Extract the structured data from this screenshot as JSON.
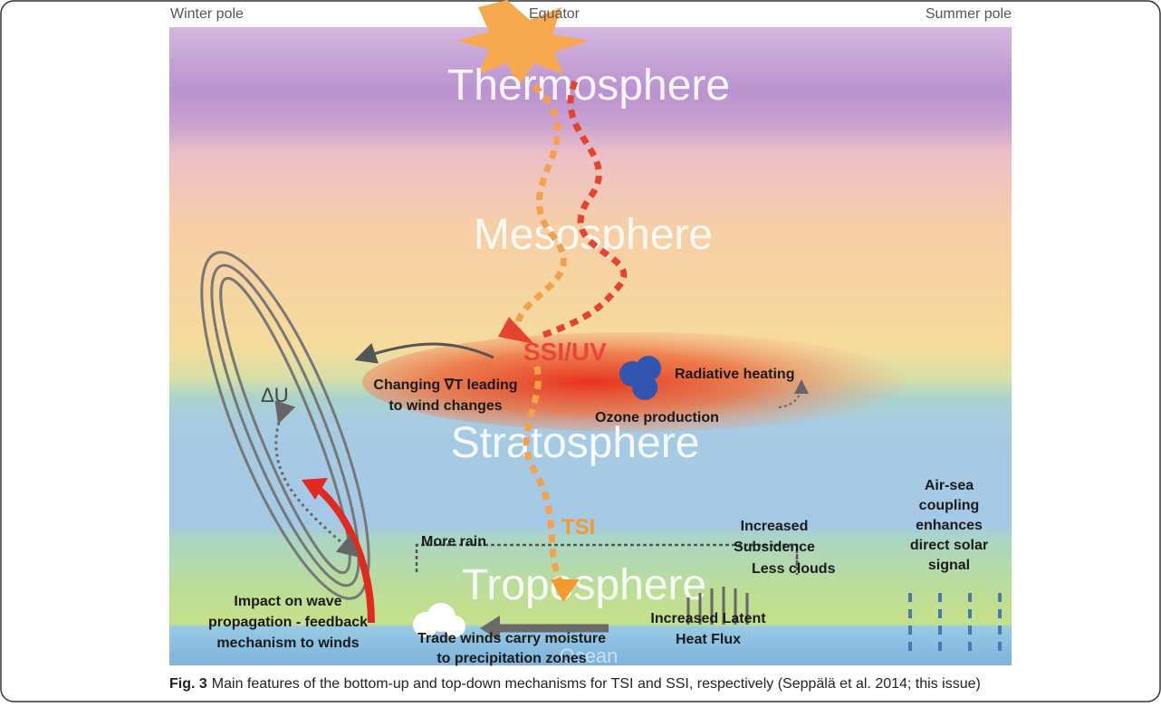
{
  "header": {
    "left": "Winter pole",
    "center": "Equator",
    "right": "Summer pole"
  },
  "layers": {
    "thermosphere": "Thermosphere",
    "mesosphere": "Mesosphere",
    "stratosphere": "Stratosphere",
    "troposphere": "Troposphere",
    "ocean": "Ocean"
  },
  "labels": {
    "delta_u": "ΔU",
    "ssi_uv": "SSI/UV",
    "tsi": "TSI",
    "radiative_heating": "Radiative heating",
    "ozone_production": "Ozone production",
    "more_rain": "More rain",
    "less_clouds": "Less clouds",
    "gradient_wind": [
      "Changing ∇T leading",
      "to wind changes"
    ],
    "subsidence": [
      "Increased",
      "Subsidence"
    ],
    "air_sea": [
      "Air-sea",
      "coupling",
      "enhances",
      "direct solar",
      "signal"
    ],
    "wave_feedback": [
      "Impact on wave",
      "propagation - feedback",
      "mechanism to winds"
    ],
    "latent_heat": [
      "Increased Latent",
      "Heat Flux"
    ],
    "trade_winds": [
      "Trade winds carry moisture",
      "to precipitation zones"
    ]
  },
  "caption": {
    "label": "Fig. 3",
    "text": "Main features of the bottom-up and top-down mechanisms for TSI and SSI, respectively (Seppälä et al. 2014; this issue)"
  }
}
